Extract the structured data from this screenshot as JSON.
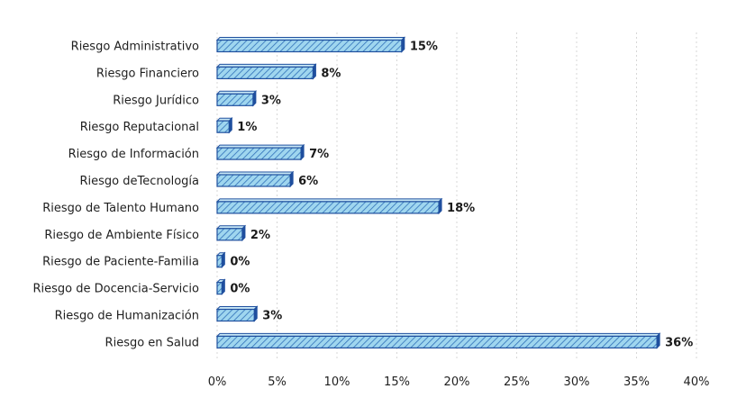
{
  "chart_data": {
    "type": "bar",
    "orientation": "horizontal",
    "categories": [
      "Riesgo Administrativo",
      "Riesgo Financiero",
      "Riesgo Jurídico",
      "Riesgo Reputacional",
      "Riesgo de Información",
      "Riesgo deTecnología",
      "Riesgo de Talento Humano",
      "Riesgo de Ambiente Físico",
      "Riesgo de Paciente-Familia",
      "Riesgo de Docencia-Servicio",
      "Riesgo de Humanización",
      "Riesgo en Salud"
    ],
    "values": [
      15,
      8,
      3,
      1,
      7,
      6,
      18,
      2,
      0,
      0,
      3,
      36
    ],
    "data_labels": [
      "15%",
      "8%",
      "3%",
      "1%",
      "7%",
      "6%",
      "18%",
      "2%",
      "0%",
      "0%",
      "3%",
      "36%"
    ],
    "bar_lengths": [
      15.4,
      8,
      3,
      1,
      7,
      6.1,
      18.5,
      2.1,
      0.4,
      0.4,
      3.1,
      36.7
    ],
    "xlim": [
      0,
      40
    ],
    "x_ticks": [
      0,
      5,
      10,
      15,
      20,
      25,
      30,
      35,
      40
    ],
    "x_tick_labels": [
      "0%",
      "5%",
      "10%",
      "15%",
      "20%",
      "25%",
      "30%",
      "35%",
      "40%"
    ],
    "title": "",
    "xlabel": "",
    "ylabel": "",
    "grid": "vertical-dotted",
    "legend": "none",
    "colors": {
      "bar_fill": "#9fd6ef",
      "bar_hatch": "#2f6fb8",
      "bar_edge": "#1f4f9e",
      "bar_side": "#1f4f9e",
      "grid": "#d7d7d7"
    }
  }
}
